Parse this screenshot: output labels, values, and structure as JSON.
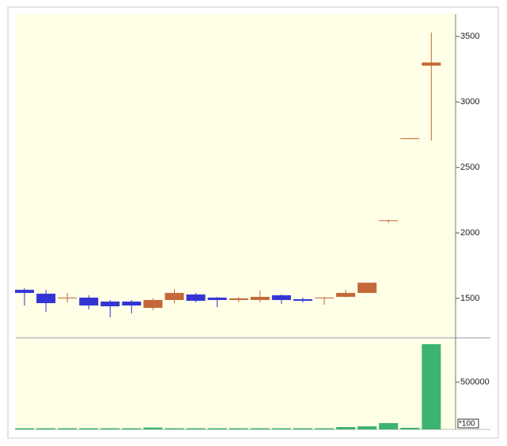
{
  "chart_data": [
    {
      "type": "candlestick",
      "open": [
        1566,
        1536,
        1500,
        1506,
        1476,
        1476,
        1428,
        1488,
        1530,
        1506,
        1488,
        1488,
        1524,
        1494,
        1500,
        1512,
        1542,
        2090,
        2723,
        3277
      ],
      "high": [
        1578,
        1566,
        1542,
        1524,
        1488,
        1488,
        1500,
        1572,
        1542,
        1512,
        1512,
        1560,
        1530,
        1506,
        1512,
        1566,
        1620,
        2102,
        2726,
        3530
      ],
      "low": [
        1446,
        1398,
        1470,
        1416,
        1355,
        1386,
        1410,
        1464,
        1470,
        1434,
        1470,
        1470,
        1458,
        1470,
        1452,
        1506,
        1542,
        2078,
        2720,
        2705
      ],
      "close": [
        1542,
        1464,
        1506,
        1446,
        1440,
        1446,
        1488,
        1542,
        1482,
        1488,
        1500,
        1512,
        1488,
        1482,
        1506,
        1542,
        1620,
        2096,
        2723,
        3301
      ],
      "up_color": "#c4683a",
      "down_color": "#3434d4",
      "ylim": [
        1205,
        3670
      ],
      "yticks": [
        1500,
        2000,
        2500,
        3000,
        3500
      ]
    },
    {
      "type": "bar",
      "values": [
        12000,
        12000,
        12000,
        12000,
        12000,
        12000,
        20000,
        12000,
        12000,
        12000,
        12000,
        12000,
        12000,
        12000,
        12000,
        25000,
        33000,
        67000,
        17000,
        900000
      ],
      "color": "#3cb371",
      "ylim": [
        0,
        967000
      ],
      "yticks": [
        500000
      ],
      "annotation": "*100"
    }
  ]
}
